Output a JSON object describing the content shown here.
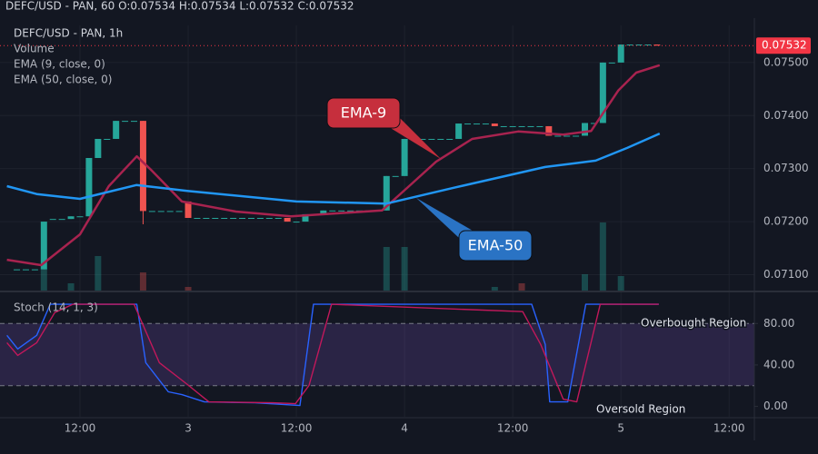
{
  "header": "DEFC/USD - PAN, 60  O:0.07534  H:0.07534  L:0.07532  C:0.07532",
  "chart_data": [
    {
      "type": "candlestick",
      "title": "DEFC/USD - PAN, 1h",
      "up_color": "#26a69a",
      "down_color": "#ef5350",
      "xlim": [
        -8.87,
        74.8
      ],
      "ylim": [
        0.0707,
        0.0757
      ],
      "yticks": [
        {
          "value": 0.071,
          "label": "0.07100"
        },
        {
          "value": 0.072,
          "label": "0.07200"
        },
        {
          "value": 0.073,
          "label": "0.07300"
        },
        {
          "value": 0.074,
          "label": "0.07400"
        },
        {
          "value": 0.075,
          "label": "0.07500"
        }
      ],
      "grid": true,
      "x": [
        -7,
        -6,
        -5,
        -4,
        -3,
        -2,
        -1,
        0,
        1,
        2,
        3,
        4,
        5,
        6,
        7,
        8,
        9,
        10,
        11,
        12,
        13,
        14,
        15,
        16,
        17,
        18,
        19,
        20,
        21,
        22,
        23,
        24,
        25,
        26,
        27,
        28,
        29,
        30,
        31,
        32,
        33,
        34,
        35,
        36,
        37,
        38,
        39,
        40,
        41,
        42,
        43,
        44,
        45,
        46,
        47,
        48,
        49,
        50,
        51,
        52,
        53,
        54,
        55,
        56,
        57,
        58,
        59,
        60,
        61,
        62,
        63,
        64
      ],
      "open": [
        0.0711,
        0.0711,
        0.0711,
        0.0711,
        0.07205,
        0.07205,
        0.07205,
        0.0721,
        0.0721,
        0.0732,
        0.07356,
        0.07356,
        0.0739,
        0.0739,
        0.0739,
        0.0722,
        0.0722,
        0.0722,
        0.0722,
        0.07238,
        0.07207,
        0.07207,
        0.07207,
        0.07207,
        0.07207,
        0.07207,
        0.07207,
        0.07207,
        0.07207,
        0.07207,
        0.07207,
        0.072,
        0.072,
        0.07214,
        0.07214,
        0.07221,
        0.07221,
        0.07221,
        0.07221,
        0.07221,
        0.07221,
        0.07221,
        0.07286,
        0.07286,
        0.07356,
        0.07356,
        0.07356,
        0.07356,
        0.07356,
        0.07356,
        0.07385,
        0.07385,
        0.07385,
        0.07385,
        0.0738,
        0.0738,
        0.0738,
        0.0738,
        0.0738,
        0.0738,
        0.07362,
        0.07362,
        0.07362,
        0.07362,
        0.07386,
        0.07386,
        0.075,
        0.075,
        0.07534,
        0.07534,
        0.07534,
        0.07534
      ],
      "high": [
        0.0711,
        0.0711,
        0.0711,
        0.072,
        0.07205,
        0.07205,
        0.0721,
        0.0721,
        0.0732,
        0.07356,
        0.07356,
        0.0739,
        0.0739,
        0.0739,
        0.0739,
        0.0722,
        0.0722,
        0.0722,
        0.0722,
        0.07238,
        0.07207,
        0.07207,
        0.07207,
        0.07207,
        0.07207,
        0.07207,
        0.07207,
        0.07207,
        0.07207,
        0.07207,
        0.07207,
        0.072,
        0.07214,
        0.07214,
        0.07221,
        0.07221,
        0.07221,
        0.07221,
        0.07221,
        0.07221,
        0.07221,
        0.07286,
        0.07286,
        0.07356,
        0.07356,
        0.07356,
        0.07356,
        0.07356,
        0.07356,
        0.07385,
        0.07385,
        0.07385,
        0.07385,
        0.07385,
        0.0738,
        0.0738,
        0.0738,
        0.0738,
        0.0738,
        0.0738,
        0.07362,
        0.07362,
        0.07362,
        0.07386,
        0.07386,
        0.075,
        0.075,
        0.07534,
        0.07534,
        0.07534,
        0.07534,
        0.07534
      ],
      "low": [
        0.0711,
        0.0711,
        0.0711,
        0.0711,
        0.07205,
        0.07205,
        0.07205,
        0.0721,
        0.0721,
        0.0732,
        0.07356,
        0.07356,
        0.0739,
        0.0739,
        0.07195,
        0.0722,
        0.0722,
        0.0722,
        0.0722,
        0.07207,
        0.07207,
        0.07207,
        0.07207,
        0.07207,
        0.07207,
        0.07207,
        0.07207,
        0.07207,
        0.07207,
        0.07207,
        0.072,
        0.072,
        0.072,
        0.07214,
        0.07214,
        0.07221,
        0.07221,
        0.07221,
        0.07221,
        0.07221,
        0.07221,
        0.07221,
        0.07286,
        0.07286,
        0.07356,
        0.07356,
        0.07356,
        0.07356,
        0.07356,
        0.07356,
        0.07385,
        0.07385,
        0.07385,
        0.0738,
        0.0738,
        0.0738,
        0.0738,
        0.0738,
        0.0738,
        0.07362,
        0.07362,
        0.07362,
        0.07362,
        0.07362,
        0.07386,
        0.07386,
        0.075,
        0.075,
        0.07534,
        0.07534,
        0.07534,
        0.07532
      ],
      "close": [
        0.0711,
        0.0711,
        0.0711,
        0.072,
        0.07205,
        0.07205,
        0.0721,
        0.0721,
        0.0732,
        0.07356,
        0.07356,
        0.0739,
        0.0739,
        0.0739,
        0.0722,
        0.0722,
        0.0722,
        0.0722,
        0.0722,
        0.07207,
        0.07207,
        0.07207,
        0.07207,
        0.07207,
        0.07207,
        0.07207,
        0.07207,
        0.07207,
        0.07207,
        0.07207,
        0.072,
        0.072,
        0.07214,
        0.07214,
        0.07221,
        0.07221,
        0.07221,
        0.07221,
        0.07221,
        0.07221,
        0.07221,
        0.07286,
        0.07286,
        0.07356,
        0.07356,
        0.07356,
        0.07356,
        0.07356,
        0.07356,
        0.07385,
        0.07385,
        0.07385,
        0.07385,
        0.0738,
        0.0738,
        0.0738,
        0.0738,
        0.0738,
        0.0738,
        0.07362,
        0.07362,
        0.07362,
        0.07362,
        0.07386,
        0.07386,
        0.075,
        0.075,
        0.07534,
        0.07534,
        0.07534,
        0.07534,
        0.07532
      ],
      "volume": {
        "name": "Volume",
        "x": [
          -4,
          -1,
          2,
          7,
          12,
          34,
          36,
          46,
          49,
          56,
          58,
          60
        ],
        "values": [
          25,
          8,
          38,
          20,
          4,
          48,
          48,
          4,
          8,
          18,
          75,
          16
        ],
        "colors": [
          "#26a69a",
          "#26a69a",
          "#26a69a",
          "#ef5350",
          "#ef5350",
          "#26a69a",
          "#26a69a",
          "#26a69a",
          "#ef5350",
          "#26a69a",
          "#26a69a",
          "#26a69a"
        ]
      },
      "lines": [
        {
          "name": "EMA (9, close, 0)",
          "color": "#a8234f",
          "x": [
            -8.1,
            -4.3,
            0,
            3.2,
            6.3,
            7.8,
            11.3,
            17.3,
            23.4,
            33.5,
            36.5,
            39.5,
            43.5,
            48.6,
            53.6,
            56.7,
            59.7,
            61.7,
            64.3
          ],
          "values": [
            0.07128,
            0.07118,
            0.07176,
            0.07267,
            0.07323,
            0.07299,
            0.07238,
            0.07219,
            0.0721,
            0.07221,
            0.07267,
            0.07313,
            0.07356,
            0.0737,
            0.07364,
            0.07371,
            0.07447,
            0.07481,
            0.07495
          ]
        },
        {
          "name": "EMA (50, close, 0)",
          "color": "#2196f3",
          "x": [
            -8.1,
            -4.8,
            0,
            6.25,
            11.9,
            24,
            34,
            41.5,
            51.6,
            57.2,
            60.7,
            64.3
          ],
          "values": [
            0.07267,
            0.07252,
            0.07243,
            0.07269,
            0.07258,
            0.07238,
            0.07234,
            0.07264,
            0.07303,
            0.07315,
            0.07339,
            0.07366
          ]
        }
      ],
      "last_price": {
        "value": 0.07532,
        "label": "0.07532",
        "color": "#f23645"
      },
      "annotations": [
        {
          "text": "EMA-9",
          "color": "#c62f3d"
        },
        {
          "text": "EMA-50",
          "color": "#2a73c4"
        }
      ]
    },
    {
      "type": "line",
      "title": "Stoch (14, 1, 3)",
      "xlim": [
        -8.87,
        74.8
      ],
      "xticks": [
        {
          "value": 0,
          "label": "12:00"
        },
        {
          "value": 12,
          "label": "3"
        },
        {
          "value": 24,
          "label": "12:00"
        },
        {
          "value": 36,
          "label": "4"
        },
        {
          "value": 48,
          "label": "12:00"
        },
        {
          "value": 60,
          "label": "5"
        },
        {
          "value": 72,
          "label": "12:00"
        }
      ],
      "ylim": [
        -10,
        110
      ],
      "yticks": [
        {
          "value": 0,
          "label": "0.00"
        },
        {
          "value": 40,
          "label": "40.00"
        },
        {
          "value": 80,
          "label": "80.00"
        }
      ],
      "band": {
        "from": 20,
        "to": 80,
        "color": "#7e57c2"
      },
      "series": [
        {
          "color": "#2962ff",
          "x": [
            -8.1,
            -6.9,
            -4.8,
            -3.3,
            6.3,
            7.3,
            9.8,
            11.3,
            13.8,
            19.4,
            24.4,
            25.9,
            27.9,
            50.1,
            51.6,
            52.1,
            54.1,
            56.1,
            57.7,
            64.2
          ],
          "values": [
            68.6,
            55.4,
            68.6,
            98.5,
            98.5,
            42.2,
            14.1,
            11.4,
            4.4,
            3.5,
            0.9,
            98.5,
            98.5,
            98.5,
            59.8,
            4.4,
            4.4,
            98.5,
            98.5,
            98.5
          ]
        },
        {
          "color": "#c2185b",
          "x": [
            -8.1,
            -6.9,
            -4.8,
            -2.8,
            -0.8,
            6.0,
            8.8,
            11.8,
            14.3,
            21.4,
            23.9,
            25.4,
            27.9,
            49.1,
            51.1,
            53.6,
            55.1,
            57.7,
            64.2
          ],
          "values": [
            61.5,
            49.2,
            61.5,
            90.5,
            98.5,
            98.5,
            42.2,
            22.0,
            4.4,
            3.5,
            2.6,
            20.2,
            98.5,
            91.4,
            59.8,
            7.0,
            4.4,
            98.5,
            98.5
          ]
        }
      ],
      "annotations": [
        "Overbought Region",
        "Oversold Region"
      ]
    }
  ]
}
